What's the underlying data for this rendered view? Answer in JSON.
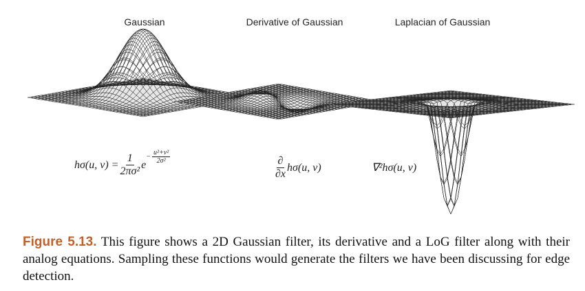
{
  "panels": [
    {
      "title": "Gaussian",
      "equation": {
        "lhs": "hσ(u, v) =",
        "numerator": "1",
        "denominator": "2πσ²",
        "base": "e",
        "exponent_sign": "−",
        "exponent_numerator": "u²+v²",
        "exponent_denominator": "2σ²"
      }
    },
    {
      "title": "Derivative of Gaussian",
      "equation": {
        "numerator": "∂",
        "denominator": "∂x",
        "rest": "hσ(u, v)"
      }
    },
    {
      "title": "Laplacian of Gaussian",
      "equation": {
        "text": "∇²hσ(u, v)"
      }
    }
  ],
  "caption": {
    "label": "Figure 5.13.",
    "text": "This figure shows a 2D Gaussian filter, its derivative and a LoG filter along with their analog equations. Sampling these functions would generate the filters we have been discussing for edge detection."
  }
}
